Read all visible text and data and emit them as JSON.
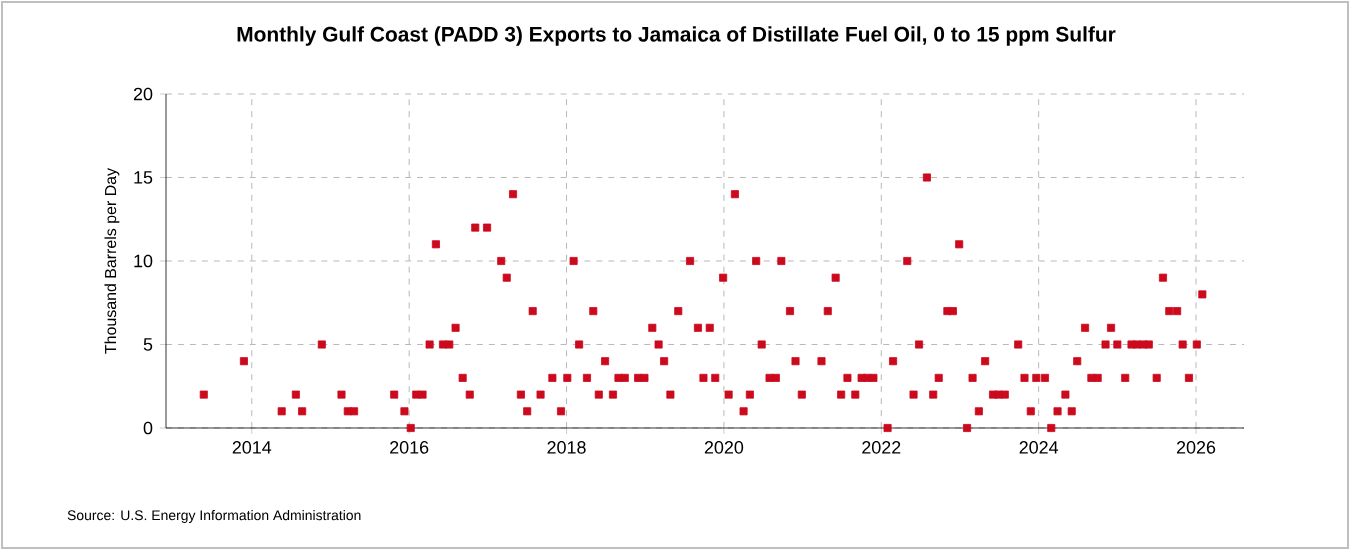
{
  "chart_data": {
    "type": "scatter",
    "title": "Monthly Gulf Coast (PADD 3) Exports to Jamaica of Distillate Fuel Oil, 0 to 15 ppm Sulfur",
    "ylabel": "Thousand Barrels per Day",
    "annotations": [
      "Source: U.S. Energy Information Administration"
    ],
    "x": [
      2013.39,
      2013.9,
      2014.38,
      2014.56,
      2014.64,
      2014.89,
      2015.14,
      2015.22,
      2015.3,
      2015.81,
      2015.94,
      2016.02,
      2016.09,
      2016.17,
      2016.26,
      2016.34,
      2016.43,
      2016.51,
      2016.59,
      2016.68,
      2016.77,
      2016.84,
      2016.99,
      2017.17,
      2017.24,
      2017.32,
      2017.42,
      2017.5,
      2017.57,
      2017.67,
      2017.82,
      2017.93,
      2018.01,
      2018.09,
      2018.16,
      2018.26,
      2018.34,
      2018.41,
      2018.49,
      2018.59,
      2018.66,
      2018.74,
      2018.91,
      2018.99,
      2019.09,
      2019.17,
      2019.24,
      2019.32,
      2019.42,
      2019.57,
      2019.67,
      2019.74,
      2019.82,
      2019.89,
      2019.99,
      2020.06,
      2020.14,
      2020.25,
      2020.33,
      2020.41,
      2020.48,
      2020.58,
      2020.66,
      2020.73,
      2020.84,
      2020.91,
      2020.99,
      2021.24,
      2021.32,
      2021.42,
      2021.49,
      2021.57,
      2021.67,
      2021.75,
      2021.82,
      2021.9,
      2022.08,
      2022.15,
      2022.33,
      2022.41,
      2022.48,
      2022.58,
      2022.66,
      2022.73,
      2022.84,
      2022.91,
      2022.99,
      2023.09,
      2023.16,
      2023.24,
      2023.32,
      2023.42,
      2023.49,
      2023.57,
      2023.74,
      2023.82,
      2023.9,
      2023.97,
      2024.08,
      2024.16,
      2024.24,
      2024.34,
      2024.42,
      2024.49,
      2024.59,
      2024.67,
      2024.75,
      2024.85,
      2024.92,
      2025.0,
      2025.1,
      2025.18,
      2025.25,
      2025.33,
      2025.4,
      2025.5,
      2025.58,
      2025.66,
      2025.76,
      2025.83,
      2025.91,
      2026.01,
      2026.08
    ],
    "values": [
      2,
      4,
      1,
      2,
      1,
      5,
      2,
      1,
      1,
      2,
      1,
      0,
      2,
      2,
      5,
      11,
      5,
      5,
      6,
      3,
      2,
      12,
      12,
      10,
      9,
      14,
      2,
      1,
      7,
      2,
      3,
      1,
      3,
      10,
      5,
      3,
      7,
      2,
      4,
      2,
      3,
      3,
      3,
      3,
      6,
      5,
      4,
      2,
      7,
      10,
      6,
      3,
      6,
      3,
      9,
      2,
      14,
      1,
      2,
      10,
      5,
      3,
      3,
      10,
      7,
      4,
      2,
      4,
      7,
      9,
      2,
      3,
      2,
      3,
      3,
      3,
      0,
      4,
      10,
      2,
      5,
      15,
      2,
      3,
      7,
      7,
      11,
      0,
      3,
      1,
      4,
      2,
      2,
      2,
      5,
      3,
      1,
      3,
      3,
      0,
      1,
      2,
      1,
      4,
      6,
      3,
      3,
      5,
      6,
      5,
      3,
      5,
      5,
      5,
      5,
      3,
      9,
      7,
      7,
      5,
      3,
      5,
      8
    ],
    "color": "#cc0a1e",
    "marker": "square",
    "grid": true,
    "xlim": [
      2012.91,
      2026.61
    ],
    "xticks": [
      2014,
      2016,
      2018,
      2020,
      2022,
      2024,
      2026
    ],
    "ylim": [
      0,
      20
    ],
    "yticks": [
      0,
      5,
      10,
      15,
      20
    ]
  }
}
